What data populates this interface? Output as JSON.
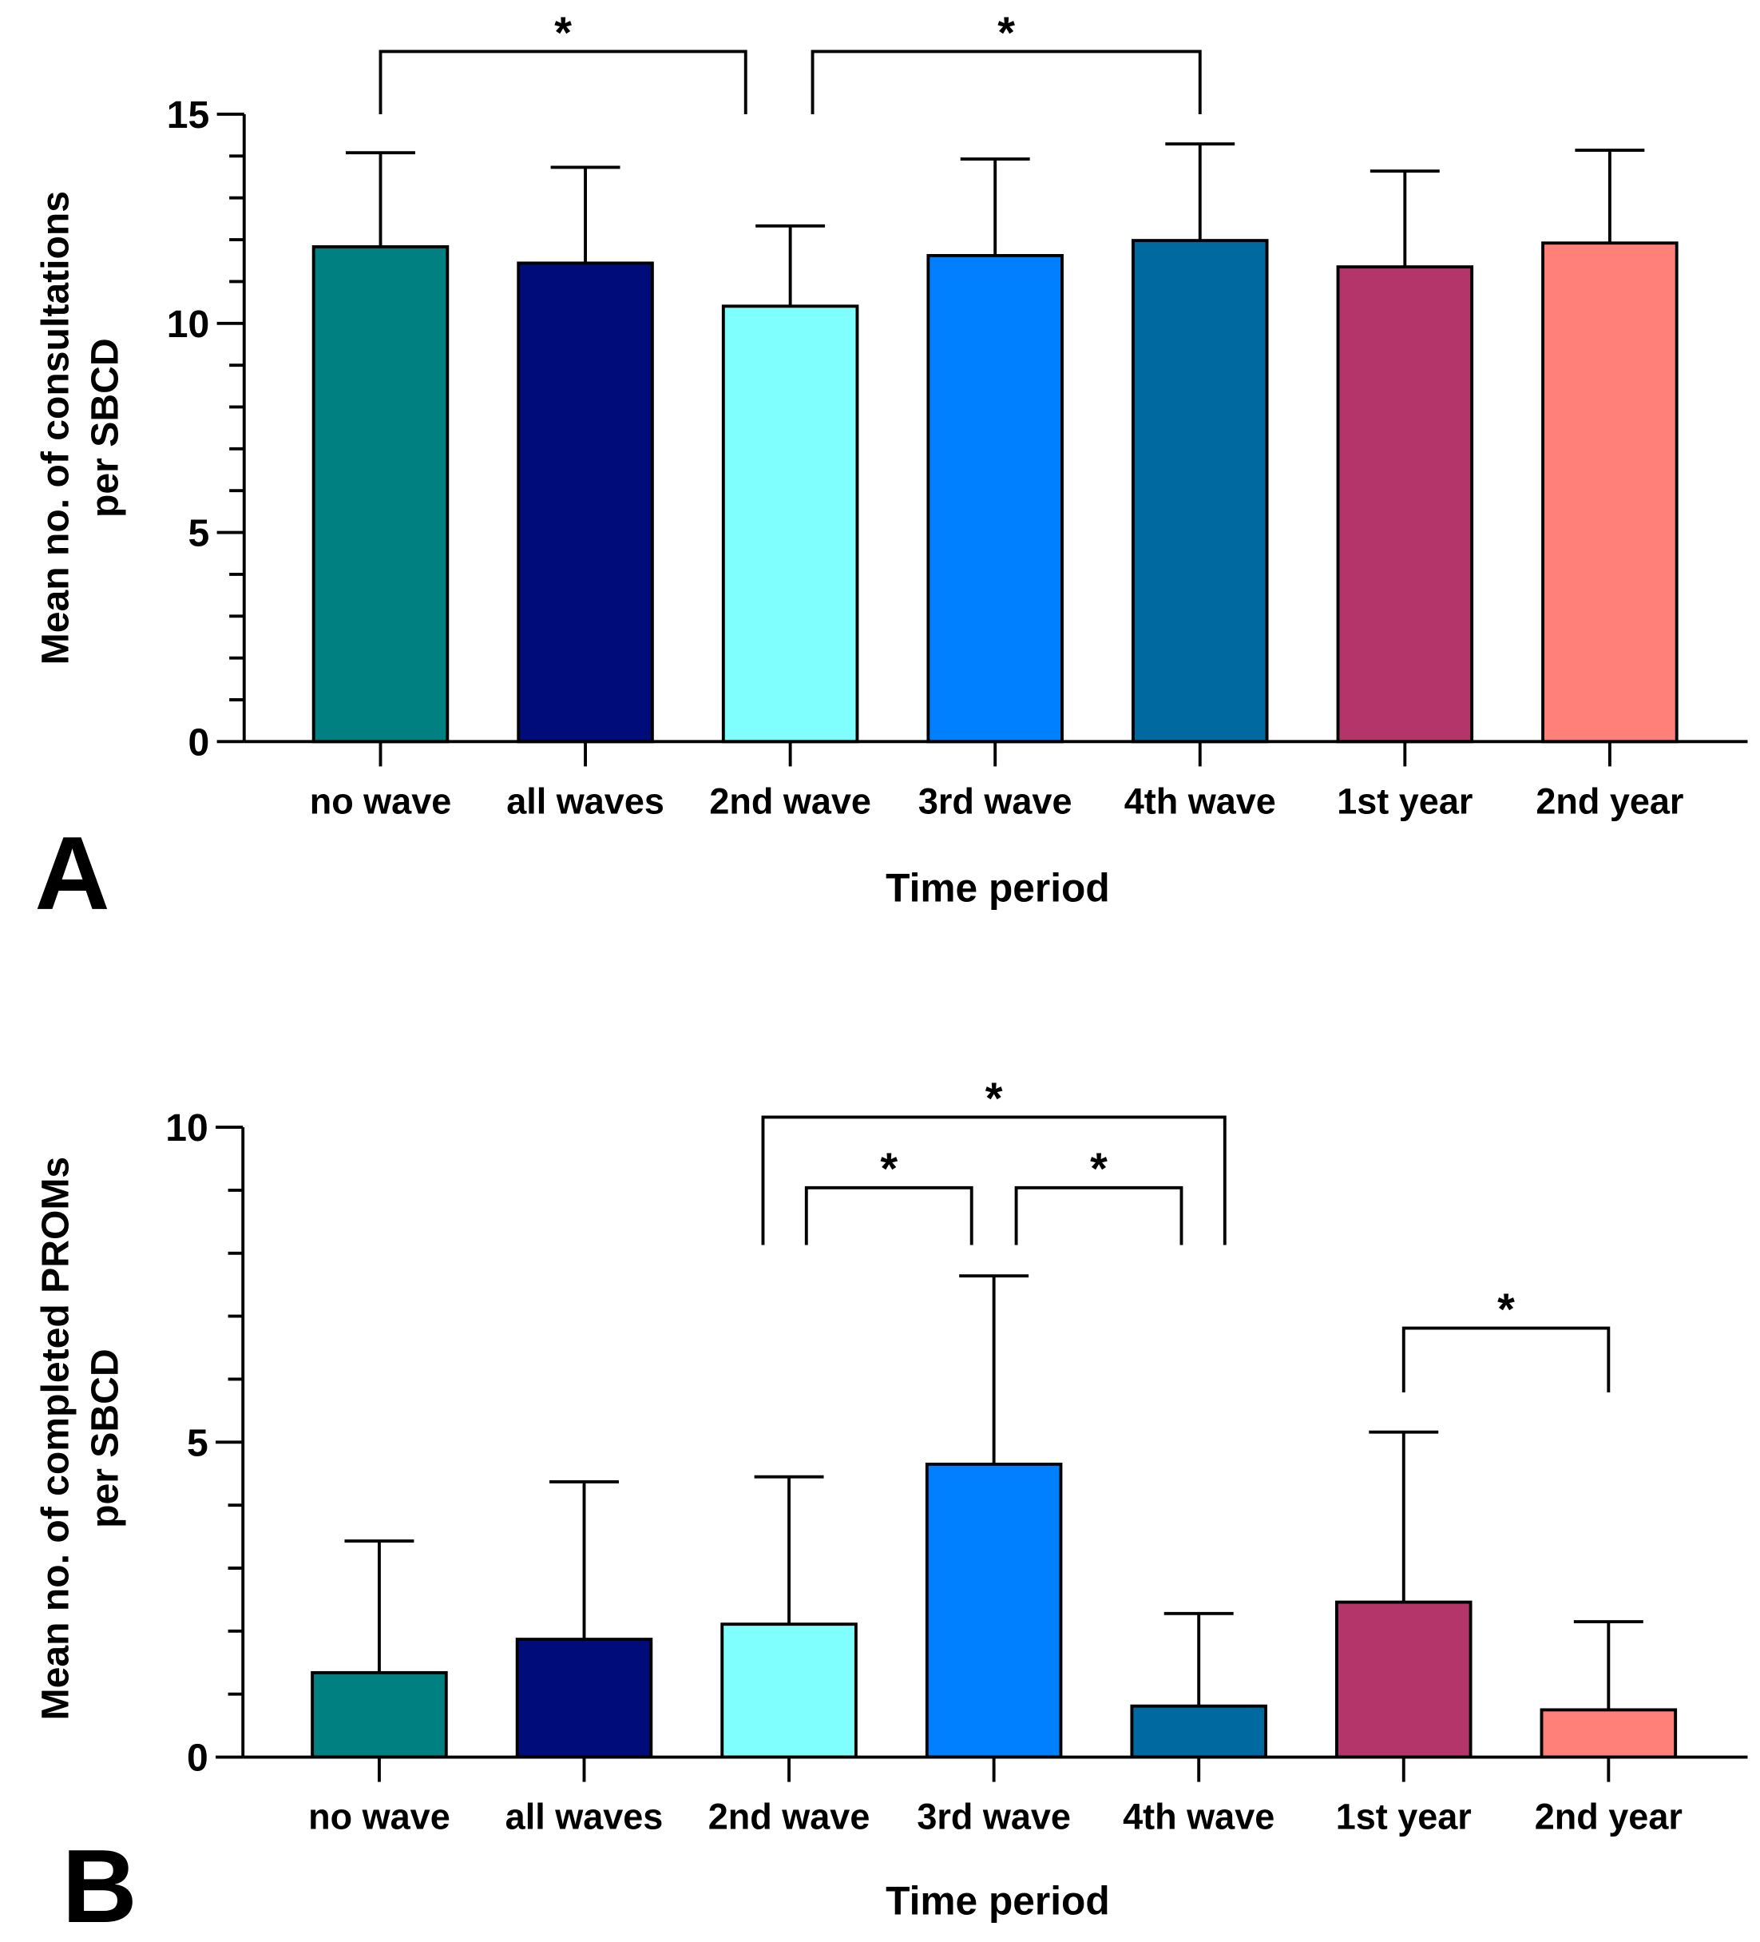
{
  "colors": [
    "#008080",
    "#000c7a",
    "#80ffff",
    "#0080ff",
    "#0069a0",
    "#b3356a",
    "#ff8078"
  ],
  "chart_data": [
    {
      "type": "bar",
      "panel_label": "A",
      "categories": [
        "no wave",
        "all waves",
        "2nd wave",
        "3rd wave",
        "4th wave",
        "1st year",
        "2nd year"
      ],
      "values": [
        11.83,
        11.44,
        10.41,
        11.62,
        11.98,
        11.35,
        11.92
      ],
      "error_upper": [
        14.08,
        13.73,
        12.33,
        13.93,
        14.29,
        13.64,
        14.14
      ],
      "xlabel": "Time period",
      "ylabel": [
        "Mean no. of consultations",
        "per SBCD"
      ],
      "ylim": [
        0,
        15
      ],
      "yticks": [
        0,
        5,
        10,
        15
      ],
      "grid": false,
      "significance": [
        {
          "from": 0,
          "to": 2,
          "level": 16.5,
          "leg_bottom": 15,
          "label": "*"
        },
        {
          "from": 2,
          "to": 4,
          "level": 16.5,
          "leg_bottom": 15,
          "label": "*"
        }
      ]
    },
    {
      "type": "bar",
      "panel_label": "B",
      "categories": [
        "no wave",
        "all waves",
        "2nd wave",
        "3rd wave",
        "4th wave",
        "1st year",
        "2nd year"
      ],
      "values": [
        1.34,
        1.87,
        2.11,
        4.65,
        0.81,
        2.46,
        0.75
      ],
      "error_upper": [
        3.43,
        4.37,
        4.45,
        7.64,
        2.28,
        5.16,
        2.15
      ],
      "xlabel": "Time period",
      "ylabel": [
        "Mean no. of completed PROMs",
        "per SBCD"
      ],
      "ylim": [
        0,
        10
      ],
      "yticks": [
        0,
        5,
        10
      ],
      "grid": false,
      "significance": [
        {
          "from": 2,
          "to": 4,
          "level": 10.16,
          "leg_bottom": 8.13,
          "label": "*"
        },
        {
          "from": 2,
          "to": 3,
          "level": 9.04,
          "leg_bottom": 8.13,
          "label": "*"
        },
        {
          "from": 3,
          "to": 4,
          "level": 9.04,
          "leg_bottom": 8.13,
          "label": "*"
        },
        {
          "from": 5,
          "to": 6,
          "level": 6.81,
          "leg_bottom": 5.79,
          "label": "*"
        }
      ]
    }
  ]
}
